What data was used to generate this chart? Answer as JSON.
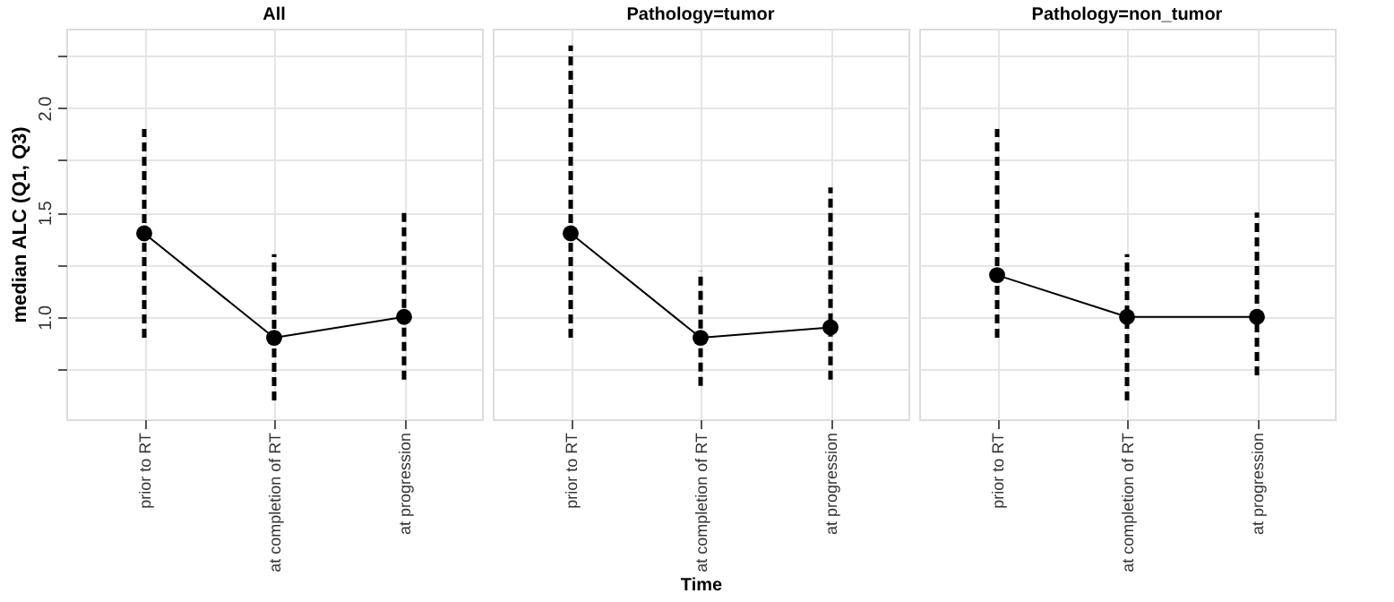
{
  "chart_data": [
    {
      "type": "line",
      "title": "All",
      "ylabel": "median ALC (Q1, Q3)",
      "categories": [
        "prior to RT",
        "at completion of RT",
        "at progression"
      ],
      "series": [
        {
          "color": "#000000",
          "values": [
            1.4,
            0.9,
            1.0
          ],
          "errors": [
            [
              0.9,
              1.9
            ],
            [
              0.6,
              1.3
            ],
            [
              0.7,
              1.5
            ]
          ]
        }
      ],
      "ylim": [
        0.51,
        2.38
      ],
      "yticks": [
        {
          "value": 0.75,
          "label": null
        },
        {
          "value": 1,
          "label": "1.0"
        },
        {
          "value": 1.25,
          "label": null
        },
        1.5,
        {
          "value": 1.75,
          "label": null
        },
        {
          "value": 2,
          "label": "2.0"
        },
        {
          "value": 2.25,
          "label": null
        }
      ],
      "grid": true,
      "marker": "circle",
      "line_style": "solid"
    },
    {
      "type": "line",
      "title": "Pathology=tumor",
      "xlabel": "Time",
      "categories": [
        "prior to RT",
        "at completion of RT",
        "at progression"
      ],
      "series": [
        {
          "color": "#000000",
          "values": [
            1.4,
            0.9,
            0.95
          ],
          "errors": [
            [
              0.9,
              2.3
            ],
            [
              0.67,
              1.22
            ],
            [
              0.7,
              1.62
            ]
          ]
        }
      ],
      "ylim": [
        0.51,
        2.38
      ],
      "yticks": [
        0.75,
        1,
        1.25,
        1.5,
        1.75,
        2,
        2.25
      ],
      "grid": true,
      "marker": "circle",
      "line_style": "solid",
      "tick_labels": "x"
    },
    {
      "type": "line",
      "title": "Pathology=non_tumor",
      "categories": [
        "prior to RT",
        "at completion of RT",
        "at progression"
      ],
      "series": [
        {
          "color": "#000000",
          "values": [
            1.2,
            1.0,
            1.0
          ],
          "errors": [
            [
              0.9,
              1.9
            ],
            [
              0.6,
              1.3
            ],
            [
              0.72,
              1.5
            ]
          ]
        }
      ],
      "ylim": [
        0.51,
        2.38
      ],
      "yticks": [
        0.75,
        1,
        1.25,
        1.5,
        1.75,
        2,
        2.25
      ],
      "grid": true,
      "marker": "circle",
      "line_style": "solid",
      "tick_labels": "x"
    }
  ]
}
